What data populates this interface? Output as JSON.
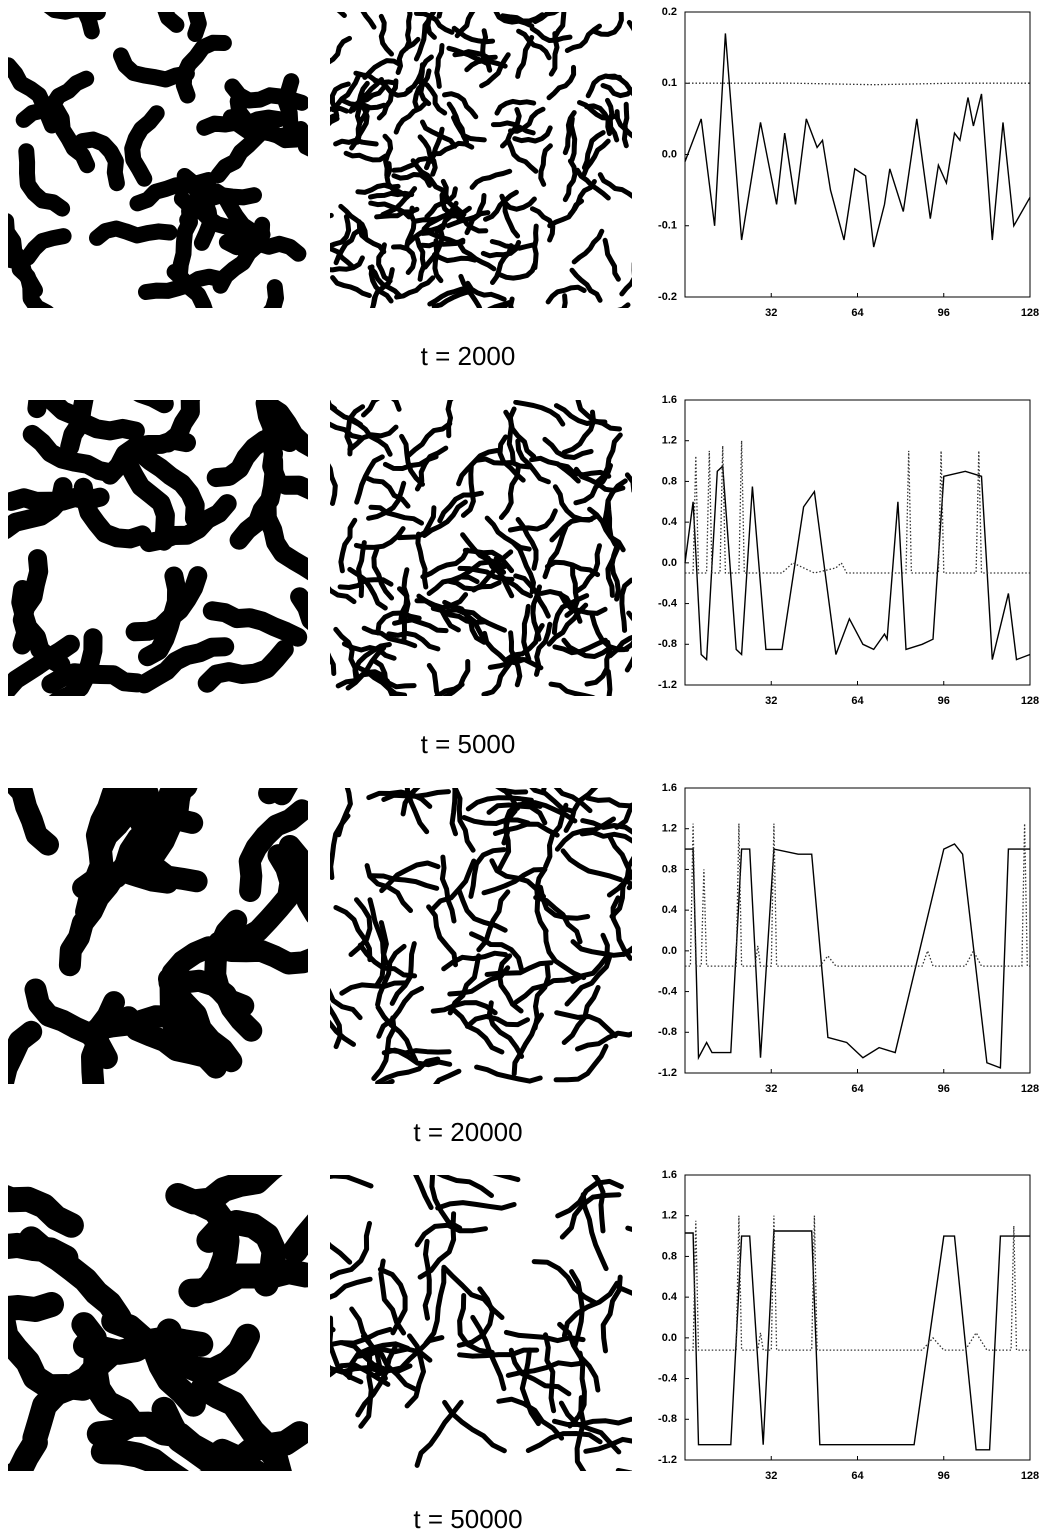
{
  "chart_data": [
    {
      "type": "line",
      "caption": "t = 2000",
      "xlim": [
        0,
        128
      ],
      "ylim": [
        -0.2,
        0.2
      ],
      "xticks": [
        32,
        64,
        96,
        128
      ],
      "yticks": [
        -0.2,
        -0.1,
        {
          "value": 0,
          "label": "0.0"
        },
        0.1,
        0.2
      ],
      "series": [
        {
          "color": "#000000",
          "style": "solid",
          "x": [
            0,
            6,
            11,
            15,
            21,
            28,
            34,
            37,
            41,
            45,
            49,
            51,
            54,
            59,
            63,
            67,
            70,
            74,
            76,
            81,
            86,
            91,
            94,
            97,
            100,
            102,
            105,
            107,
            110,
            114,
            118,
            122,
            128
          ],
          "values": [
            -0.01,
            0.05,
            -0.1,
            0.17,
            -0.12,
            0.045,
            -0.07,
            0.03,
            -0.07,
            0.05,
            0.01,
            0.02,
            -0.05,
            -0.12,
            -0.02,
            -0.03,
            -0.13,
            -0.07,
            -0.02,
            -0.08,
            0.05,
            -0.09,
            -0.015,
            -0.04,
            0.03,
            0.02,
            0.08,
            0.04,
            0.085,
            -0.12,
            0.045,
            -0.1,
            -0.06
          ]
        },
        {
          "color": "#333333",
          "style": "dotted",
          "x": [
            0,
            40,
            70,
            100,
            128
          ],
          "values": [
            0.1,
            0.1,
            0.098,
            0.1,
            0.1
          ]
        }
      ]
    },
    {
      "type": "line",
      "caption": "t = 5000",
      "xlim": [
        0,
        128
      ],
      "ylim": [
        -1.2,
        1.6
      ],
      "xticks": [
        32,
        64,
        96,
        128
      ],
      "yticks": [
        -1.2,
        -0.8,
        -0.4,
        {
          "value": 0,
          "label": "0.0"
        },
        0.4,
        0.8,
        1.2,
        1.6
      ],
      "series": [
        {
          "color": "#000000",
          "style": "solid",
          "x": [
            0,
            3,
            6,
            8,
            12,
            14,
            19,
            21,
            25,
            30,
            36,
            44,
            48,
            56,
            61,
            66,
            70,
            74,
            75,
            79,
            82,
            88,
            92,
            96,
            104,
            110,
            114,
            120,
            123,
            128
          ],
          "values": [
            0.0,
            0.6,
            -0.9,
            -0.95,
            0.9,
            0.95,
            -0.85,
            -0.9,
            0.75,
            -0.85,
            -0.85,
            0.55,
            0.7,
            -0.9,
            -0.55,
            -0.8,
            -0.85,
            -0.7,
            -0.75,
            0.6,
            -0.85,
            -0.8,
            -0.75,
            0.85,
            0.9,
            0.85,
            -0.95,
            -0.3,
            -0.95,
            -0.9
          ]
        },
        {
          "color": "#333333",
          "style": "dotted",
          "x": [
            0,
            3,
            4,
            5,
            8,
            9,
            10,
            13,
            14,
            15,
            20,
            21,
            22,
            36,
            40,
            44,
            48,
            56,
            58,
            60,
            82,
            83,
            84,
            94,
            95,
            96,
            108,
            109,
            110,
            128
          ],
          "values": [
            -0.1,
            -0.1,
            1.05,
            -0.1,
            -0.1,
            1.1,
            -0.1,
            -0.1,
            1.15,
            -0.1,
            -0.1,
            1.2,
            -0.1,
            -0.1,
            0.0,
            -0.05,
            -0.1,
            -0.05,
            0.0,
            -0.1,
            -0.1,
            1.1,
            -0.1,
            -0.1,
            1.1,
            -0.1,
            -0.1,
            1.1,
            -0.1,
            -0.1
          ]
        }
      ]
    },
    {
      "type": "line",
      "caption": "t = 20000",
      "xlim": [
        0,
        128
      ],
      "ylim": [
        -1.2,
        1.6
      ],
      "xticks": [
        32,
        64,
        96,
        128
      ],
      "yticks": [
        -1.2,
        -0.8,
        -0.4,
        {
          "value": 0,
          "label": "0.0"
        },
        0.4,
        0.8,
        1.2,
        1.6
      ],
      "series": [
        {
          "color": "#000000",
          "style": "solid",
          "x": [
            0,
            3,
            5,
            8,
            10,
            17,
            21,
            24,
            28,
            33,
            42,
            47,
            53,
            60,
            62,
            66,
            72,
            78,
            96,
            100,
            103,
            112,
            117,
            120,
            128
          ],
          "values": [
            1.0,
            1.0,
            -1.05,
            -0.9,
            -1.0,
            -1.0,
            1.0,
            1.0,
            -1.05,
            1.0,
            0.95,
            0.95,
            -0.85,
            -0.9,
            -0.95,
            -1.05,
            -0.95,
            -1.0,
            1.0,
            1.05,
            0.95,
            -1.1,
            -1.15,
            1.0,
            1.0
          ]
        },
        {
          "color": "#333333",
          "style": "dotted",
          "x": [
            0,
            2,
            3,
            4,
            6,
            7,
            8,
            19,
            20,
            21,
            26,
            27,
            28,
            32,
            33,
            34,
            50,
            53,
            56,
            88,
            90,
            92,
            104,
            107,
            110,
            125,
            126,
            127,
            128
          ],
          "values": [
            -0.15,
            -0.15,
            1.25,
            -0.15,
            -0.15,
            0.8,
            -0.15,
            -0.15,
            1.25,
            -0.15,
            -0.15,
            0.05,
            -0.15,
            -0.15,
            1.25,
            -0.15,
            -0.15,
            -0.05,
            -0.15,
            -0.15,
            0.0,
            -0.15,
            -0.15,
            0.0,
            -0.15,
            -0.15,
            1.25,
            -0.15,
            -0.15
          ]
        }
      ]
    },
    {
      "type": "line",
      "caption": "t = 50000",
      "xlim": [
        0,
        128
      ],
      "ylim": [
        -1.2,
        1.6
      ],
      "xticks": [
        32,
        64,
        96,
        128
      ],
      "yticks": [
        -1.2,
        -0.8,
        -0.4,
        {
          "value": 0,
          "label": "0.0"
        },
        0.4,
        0.8,
        1.2,
        1.6
      ],
      "series": [
        {
          "color": "#000000",
          "style": "solid",
          "x": [
            0,
            3,
            5,
            8,
            17,
            21,
            24,
            29,
            33,
            47,
            50,
            60,
            85,
            96,
            100,
            108,
            113,
            117,
            120,
            128
          ],
          "values": [
            1.03,
            1.03,
            -1.05,
            -1.05,
            -1.05,
            1.0,
            1.0,
            -1.05,
            1.05,
            1.05,
            -1.05,
            -1.05,
            -1.05,
            1.0,
            1.0,
            -1.1,
            -1.1,
            1.0,
            1.0,
            1.0
          ]
        },
        {
          "color": "#333333",
          "style": "dotted",
          "x": [
            0,
            3,
            4,
            5,
            19,
            20,
            21,
            27,
            28,
            29,
            32,
            33,
            34,
            47,
            48,
            49,
            88,
            92,
            96,
            104,
            108,
            112,
            121,
            122,
            123,
            128
          ],
          "values": [
            -0.12,
            -0.12,
            1.15,
            -0.12,
            -0.12,
            1.2,
            -0.12,
            -0.12,
            0.05,
            -0.12,
            -0.12,
            1.2,
            -0.12,
            -0.12,
            1.2,
            -0.12,
            -0.12,
            0.0,
            -0.12,
            -0.12,
            0.05,
            -0.12,
            -0.12,
            1.1,
            -0.12,
            -0.12
          ]
        }
      ]
    }
  ]
}
